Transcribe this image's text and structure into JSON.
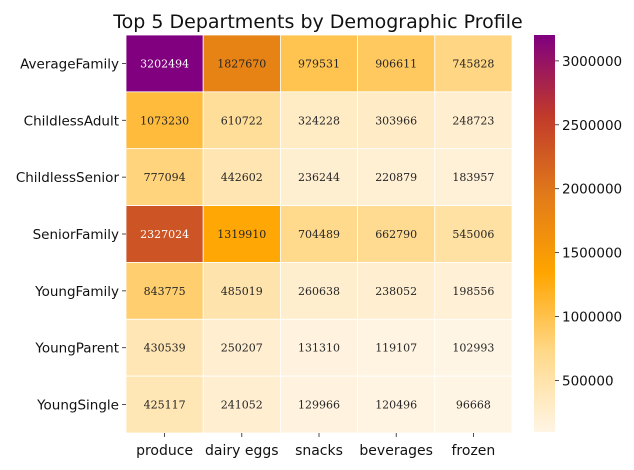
{
  "chart_data": {
    "type": "heatmap",
    "title": "Top 5 Departments by Demographic Profile",
    "columns": [
      "produce",
      "dairy eggs",
      "snacks",
      "beverages",
      "frozen"
    ],
    "rows": [
      "AverageFamily",
      "ChildlessAdult",
      "ChildlessSenior",
      "SeniorFamily",
      "YoungFamily",
      "YoungParent",
      "YoungSingle"
    ],
    "values": [
      [
        3202494,
        1827670,
        979531,
        906611,
        745828
      ],
      [
        1073230,
        610722,
        324228,
        303966,
        248723
      ],
      [
        777094,
        442602,
        236244,
        220879,
        183957
      ],
      [
        2327024,
        1319910,
        704489,
        662790,
        545006
      ],
      [
        843775,
        485019,
        260638,
        238052,
        198556
      ],
      [
        430539,
        250207,
        131310,
        119107,
        102993
      ],
      [
        425117,
        241052,
        129966,
        120496,
        96668
      ]
    ],
    "colorbar": {
      "ticks": [
        500000,
        1000000,
        1500000,
        2000000,
        2500000,
        3000000
      ],
      "range": [
        96668,
        3202494
      ]
    },
    "colormap": [
      "#fff5e5",
      "#ffd98a",
      "#ffa500",
      "#e07a1a",
      "#c0392b",
      "#800080"
    ],
    "annot": true
  }
}
